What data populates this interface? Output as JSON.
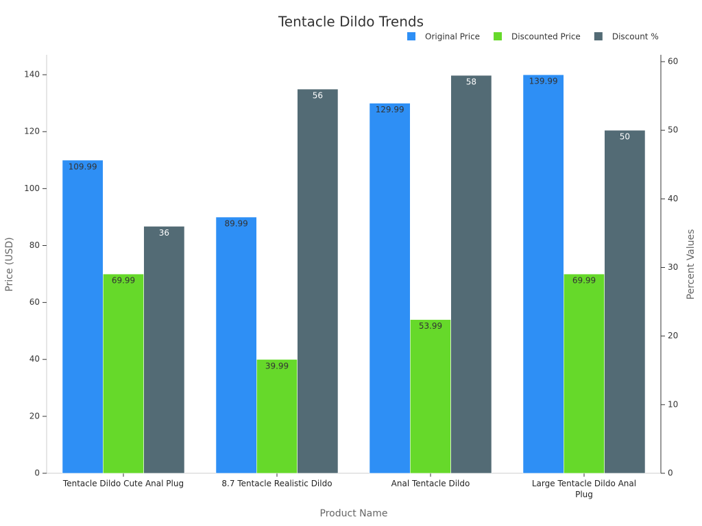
{
  "chart_data": {
    "type": "bar",
    "title": "Tentacle Dildo Trends",
    "x_label": "Product Name",
    "y_label": "Price (USD)",
    "y2_label": "Percent Values",
    "categories": [
      "Tentacle Dildo Cute Anal Plug",
      "8.7 Tentacle Realistic Dildo",
      "Anal Tentacle Dildo",
      "Large Tentacle Dildo Anal Plug"
    ],
    "series": [
      {
        "name": "Original Price",
        "color": "#2e8ff5",
        "values": [
          109.99,
          89.99,
          129.99,
          139.99
        ]
      },
      {
        "name": "Discounted Price",
        "color": "#66d92a",
        "values": [
          69.99,
          39.99,
          53.99,
          69.99
        ]
      },
      {
        "name": "Discount %",
        "color": "#536b75",
        "axis": "y2",
        "values": [
          36,
          56,
          58,
          50
        ]
      }
    ],
    "ylim": [
      0,
      147
    ],
    "yticks": [
      0,
      20,
      40,
      60,
      80,
      100,
      120,
      140
    ],
    "y2lim": [
      0,
      61
    ],
    "y2ticks": [
      0,
      10,
      20,
      30,
      40,
      50,
      60
    ],
    "grid": false,
    "legend": "top-right"
  }
}
